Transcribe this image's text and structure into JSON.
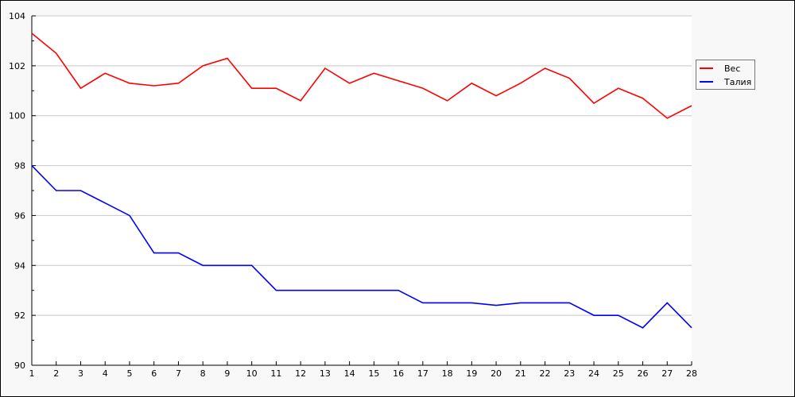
{
  "chart_data": {
    "type": "line",
    "title": "",
    "xlabel": "",
    "ylabel": "",
    "x": [
      1,
      2,
      3,
      4,
      5,
      6,
      7,
      8,
      9,
      10,
      11,
      12,
      13,
      14,
      15,
      16,
      17,
      18,
      19,
      20,
      21,
      22,
      23,
      24,
      25,
      26,
      27,
      28
    ],
    "xlim": [
      1,
      28
    ],
    "ylim": [
      90,
      104
    ],
    "yticks": [
      90,
      92,
      94,
      96,
      98,
      100,
      102,
      104
    ],
    "grid": true,
    "legend_position": "right",
    "series": [
      {
        "name": "Вес",
        "color": "#ff0000",
        "values": [
          103.3,
          102.5,
          101.1,
          101.7,
          101.3,
          101.2,
          101.3,
          102.0,
          102.3,
          101.1,
          101.1,
          100.6,
          101.9,
          101.3,
          101.7,
          101.4,
          101.1,
          100.6,
          101.3,
          100.8,
          101.3,
          101.9,
          101.5,
          100.5,
          101.1,
          100.7,
          99.9,
          100.4
        ]
      },
      {
        "name": "Талия",
        "color": "#0000ff",
        "values": [
          98,
          97,
          97,
          96.5,
          96,
          94.5,
          94.5,
          94,
          94,
          94,
          93,
          93,
          93,
          93,
          93,
          93,
          92.5,
          92.5,
          92.5,
          92.4,
          92.5,
          92.5,
          92.5,
          92,
          92,
          91.5,
          92.5,
          91.5
        ]
      }
    ]
  }
}
